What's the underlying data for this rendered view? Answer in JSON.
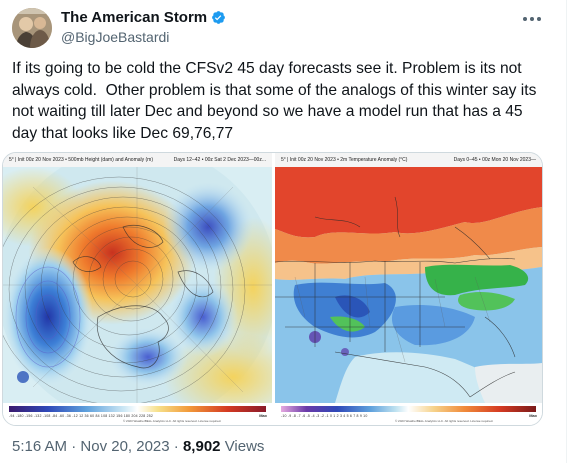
{
  "author": {
    "display_name": "The American Storm",
    "handle": "@BigJoeBastardi"
  },
  "tweet": {
    "text": "If its going to be cold the CFSv2 45 day forecasts see it. Problem is its not always cold.  Other problem is that some of the analogs of this winter say its not waiting till later Dec and beyond so we have a model run that has a 45 day that looks like Dec 69,76,77"
  },
  "media": {
    "left_map": {
      "header_left": "5° | Init 00z 20 Nov 2023 • 500mb Height (dam) and Anomaly (m)",
      "header_right": "Days 12–42 • 00z Sat 2 Dec 2023—00z...",
      "colorbar_labels": "-94 -180 -156 -132 -108 -84 -60 -36 -12 12 36 60 84 108 132 156 180 204 228 252",
      "credit": "© 2023 WeatherBELL Analytics LLC. All rights reserved. License required.",
      "max_label": "Max"
    },
    "right_map": {
      "header_left": "5° | Init 00z 20 Nov 2023 • 2m Temperature Anomaly (°C)",
      "header_right": "Days 0–45 • 00z Mon 20 Nov 2023—",
      "colorbar_labels": "-10 -9 -8 -7 -6 -5 -4 -3 -2 -1 0 1 2 3 4 5 6 7 8 9 10",
      "credit": "© 2023 WeatherBELL Analytics LLC. All rights reserved. License required.",
      "max_label": "Max"
    }
  },
  "meta": {
    "time": "5:16 AM",
    "separator": "·",
    "date": "Nov 20, 2023",
    "views_count": "8,902",
    "views_label": "Views"
  },
  "colors": {
    "verified": "#1d9bf0",
    "secondary_text": "#536471",
    "primary_text": "#0f1419"
  }
}
